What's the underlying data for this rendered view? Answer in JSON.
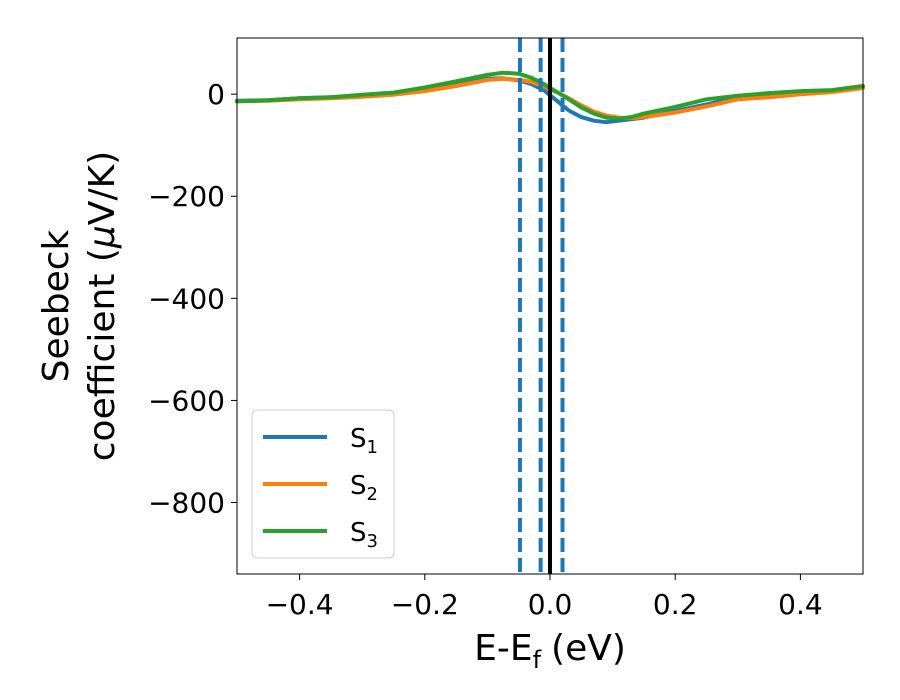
{
  "chart_data": {
    "type": "line",
    "title": "",
    "xlabel": "E-E",
    "xlabel_sub": "f",
    "xlabel_unit": "(eV)",
    "ylabel_line1": "Seebeck",
    "ylabel_line2": "coefficient  (",
    "ylabel_mu": "μ",
    "ylabel_unit": "V/K)",
    "xlim": [
      -0.5,
      0.5
    ],
    "ylim": [
      -940,
      110
    ],
    "xticks": [
      -0.4,
      -0.2,
      0.0,
      0.2,
      0.4
    ],
    "xtick_labels": [
      "−0.4",
      "−0.2",
      "0.0",
      "0.2",
      "0.4"
    ],
    "yticks": [
      0,
      -200,
      -400,
      -600,
      -800
    ],
    "ytick_labels": [
      "0",
      "−200",
      "−400",
      "−600",
      "−800"
    ],
    "grid": false,
    "legend_position": "lower-left",
    "series": [
      {
        "name": "S",
        "sub": "1",
        "color": "#1f77b4",
        "x": [
          -0.5,
          -0.45,
          -0.4,
          -0.35,
          -0.3,
          -0.25,
          -0.2,
          -0.15,
          -0.1,
          -0.075,
          -0.05,
          -0.03,
          -0.01,
          0.0,
          0.01,
          0.03,
          0.05,
          0.07,
          0.09,
          0.11,
          0.13,
          0.15,
          0.2,
          0.25,
          0.3,
          0.35,
          0.4,
          0.45,
          0.5
        ],
        "y": [
          -13,
          -12,
          -8,
          -6,
          -3,
          2,
          9,
          19,
          30,
          31,
          27,
          20,
          8,
          -2,
          -12,
          -32,
          -45,
          -52,
          -55,
          -52,
          -49,
          -46,
          -33,
          -20,
          -6,
          -2,
          4,
          6,
          14
        ]
      },
      {
        "name": "S",
        "sub": "2",
        "color": "#ff7f0e",
        "x": [
          -0.5,
          -0.45,
          -0.4,
          -0.35,
          -0.3,
          -0.25,
          -0.2,
          -0.15,
          -0.1,
          -0.075,
          -0.05,
          -0.03,
          -0.01,
          0.0,
          0.01,
          0.03,
          0.05,
          0.07,
          0.09,
          0.11,
          0.13,
          0.15,
          0.2,
          0.25,
          0.3,
          0.35,
          0.4,
          0.45,
          0.5
        ],
        "y": [
          -14,
          -13,
          -10,
          -8,
          -5,
          -1,
          6,
          16,
          28,
          30,
          28,
          24,
          15,
          10,
          4,
          -8,
          -22,
          -34,
          -42,
          -46,
          -47,
          -45,
          -36,
          -24,
          -10,
          -6,
          0,
          4,
          12
        ]
      },
      {
        "name": "S",
        "sub": "3",
        "color": "#2ca02c",
        "x": [
          -0.5,
          -0.45,
          -0.4,
          -0.35,
          -0.3,
          -0.25,
          -0.2,
          -0.15,
          -0.1,
          -0.075,
          -0.05,
          -0.03,
          -0.01,
          0.0,
          0.01,
          0.03,
          0.05,
          0.07,
          0.09,
          0.11,
          0.13,
          0.15,
          0.2,
          0.25,
          0.3,
          0.35,
          0.4,
          0.45,
          0.5
        ],
        "y": [
          -14,
          -12,
          -8,
          -6,
          -1,
          3,
          13,
          25,
          38,
          42,
          40,
          32,
          20,
          12,
          5,
          -10,
          -26,
          -38,
          -46,
          -48,
          -45,
          -38,
          -25,
          -10,
          -3,
          2,
          6,
          8,
          16
        ]
      }
    ],
    "vertical_lines": [
      {
        "x": -0.048,
        "color": "#1f77b4",
        "style": "dashed"
      },
      {
        "x": -0.015,
        "color": "#1f77b4",
        "style": "dashed"
      },
      {
        "x": 0.02,
        "color": "#1f77b4",
        "style": "dashed"
      },
      {
        "x": 0.0,
        "color": "#000000",
        "style": "solid"
      }
    ]
  }
}
